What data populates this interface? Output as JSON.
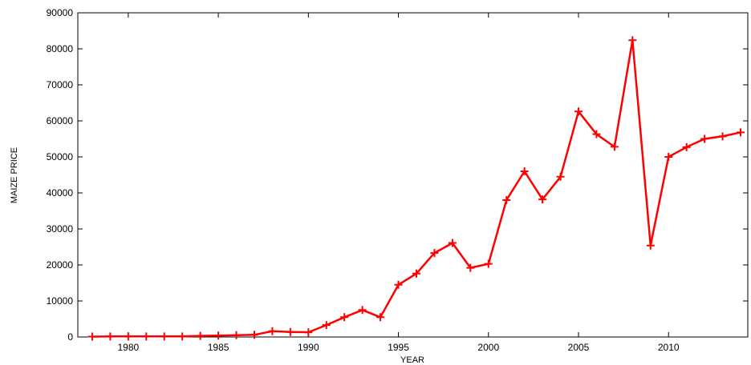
{
  "chart_data": {
    "type": "line",
    "xlabel": "YEAR",
    "ylabel": "MAIZE PRICE",
    "xlim": [
      1977.2,
      2014.4
    ],
    "ylim": [
      0,
      90000
    ],
    "x_ticks": [
      1980,
      1985,
      1990,
      1995,
      2000,
      2005,
      2010
    ],
    "y_ticks": [
      0,
      10000,
      20000,
      30000,
      40000,
      50000,
      60000,
      70000,
      80000,
      90000
    ],
    "grid": false,
    "line_color": "#ff0000",
    "marker": "plus",
    "series": [
      {
        "x": [
          1978,
          1979,
          1980,
          1981,
          1982,
          1983,
          1984,
          1985,
          1986,
          1987,
          1988,
          1989,
          1990,
          1991,
          1992,
          1993,
          1994,
          1995,
          1996,
          1997,
          1998,
          1999,
          2000,
          2001,
          2002,
          2003,
          2004,
          2005,
          2006,
          2007,
          2008,
          2009,
          2010,
          2011,
          2012,
          2013,
          2014
        ],
        "values": [
          100,
          150,
          150,
          150,
          150,
          150,
          300,
          400,
          500,
          600,
          1600,
          1400,
          1300,
          3300,
          5500,
          7500,
          5500,
          14500,
          17600,
          23300,
          26100,
          19200,
          20300,
          38000,
          46000,
          38200,
          44500,
          62600,
          56300,
          52800,
          82400,
          25400,
          50000,
          52700,
          55000,
          55700,
          56800
        ]
      }
    ]
  }
}
